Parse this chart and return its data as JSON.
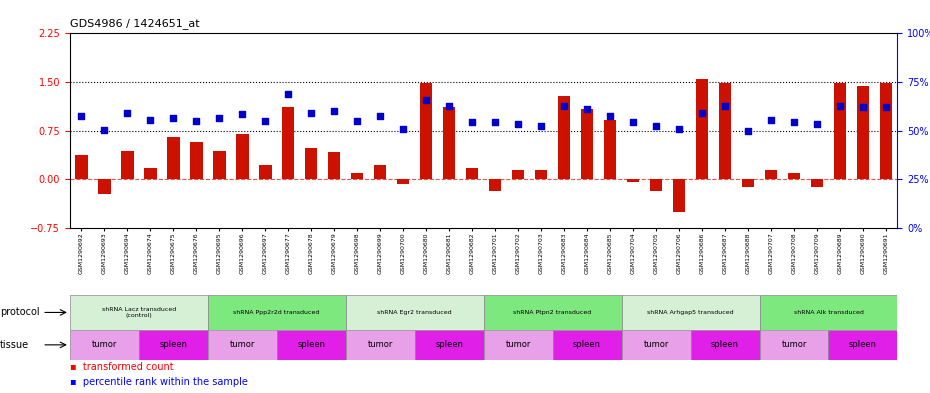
{
  "title": "GDS4986 / 1424651_at",
  "sample_ids": [
    "GSM1290692",
    "GSM1290693",
    "GSM1290694",
    "GSM1290674",
    "GSM1290675",
    "GSM1290676",
    "GSM1290695",
    "GSM1290696",
    "GSM1290697",
    "GSM1290677",
    "GSM1290678",
    "GSM1290679",
    "GSM1290698",
    "GSM1290699",
    "GSM1290700",
    "GSM1290680",
    "GSM1290681",
    "GSM1290682",
    "GSM1290701",
    "GSM1290702",
    "GSM1290703",
    "GSM1290683",
    "GSM1290684",
    "GSM1290685",
    "GSM1290704",
    "GSM1290705",
    "GSM1290706",
    "GSM1290686",
    "GSM1290687",
    "GSM1290688",
    "GSM1290707",
    "GSM1290708",
    "GSM1290709",
    "GSM1290689",
    "GSM1290690",
    "GSM1290691"
  ],
  "bar_values": [
    0.38,
    -0.22,
    0.44,
    0.18,
    0.65,
    0.58,
    0.44,
    0.7,
    0.22,
    1.12,
    0.48,
    0.42,
    0.1,
    0.22,
    -0.07,
    1.48,
    1.12,
    0.18,
    -0.18,
    0.14,
    0.15,
    1.28,
    1.08,
    0.92,
    -0.04,
    -0.18,
    -0.5,
    1.55,
    1.48,
    -0.12,
    0.14,
    0.1,
    -0.12,
    1.48,
    1.44,
    1.48
  ],
  "dot_values": [
    0.98,
    0.76,
    1.02,
    0.92,
    0.95,
    0.9,
    0.94,
    1.01,
    0.9,
    1.32,
    1.02,
    1.06,
    0.9,
    0.97,
    0.78,
    1.23,
    1.13,
    0.88,
    0.88,
    0.86,
    0.82,
    1.13,
    1.09,
    0.97,
    0.88,
    0.82,
    0.78,
    1.02,
    1.13,
    0.75,
    0.92,
    0.88,
    0.86,
    1.13,
    1.11,
    1.11
  ],
  "protocols": [
    {
      "label": "shRNA Lacz transduced\n(control)",
      "start": 0,
      "end": 6,
      "color": "#d5f0d5"
    },
    {
      "label": "shRNA Ppp2r2d transduced",
      "start": 6,
      "end": 12,
      "color": "#7de87d"
    },
    {
      "label": "shRNA Egr2 transduced",
      "start": 12,
      "end": 18,
      "color": "#d5f0d5"
    },
    {
      "label": "shRNA Ptpn2 transduced",
      "start": 18,
      "end": 24,
      "color": "#7de87d"
    },
    {
      "label": "shRNA Arhgap5 transduced",
      "start": 24,
      "end": 30,
      "color": "#d5f0d5"
    },
    {
      "label": "shRNA Alk transduced",
      "start": 30,
      "end": 36,
      "color": "#7de87d"
    }
  ],
  "tissues": [
    {
      "label": "tumor",
      "start": 0,
      "end": 3,
      "color": "#e8a0e8"
    },
    {
      "label": "spleen",
      "start": 3,
      "end": 6,
      "color": "#e020e8"
    },
    {
      "label": "tumor",
      "start": 6,
      "end": 9,
      "color": "#e8a0e8"
    },
    {
      "label": "spleen",
      "start": 9,
      "end": 12,
      "color": "#e020e8"
    },
    {
      "label": "tumor",
      "start": 12,
      "end": 15,
      "color": "#e8a0e8"
    },
    {
      "label": "spleen",
      "start": 15,
      "end": 18,
      "color": "#e020e8"
    },
    {
      "label": "tumor",
      "start": 18,
      "end": 21,
      "color": "#e8a0e8"
    },
    {
      "label": "spleen",
      "start": 21,
      "end": 24,
      "color": "#e020e8"
    },
    {
      "label": "tumor",
      "start": 24,
      "end": 27,
      "color": "#e8a0e8"
    },
    {
      "label": "spleen",
      "start": 27,
      "end": 30,
      "color": "#e020e8"
    },
    {
      "label": "tumor",
      "start": 30,
      "end": 33,
      "color": "#e8a0e8"
    },
    {
      "label": "spleen",
      "start": 33,
      "end": 36,
      "color": "#e020e8"
    }
  ],
  "ylim": [
    -0.75,
    2.25
  ],
  "yticks_left": [
    -0.75,
    0.0,
    0.75,
    1.5,
    2.25
  ],
  "yticks_right": [
    0,
    25,
    50,
    75,
    100
  ],
  "hlines": [
    0.75,
    1.5
  ],
  "bar_color": "#cc1100",
  "dot_color": "#0000cc",
  "zero_line_color": "#cc1100",
  "background_color": "#ffffff",
  "bar_width": 0.55,
  "dot_size": 20,
  "legend_red": "transformed count",
  "legend_blue": "percentile rank within the sample"
}
